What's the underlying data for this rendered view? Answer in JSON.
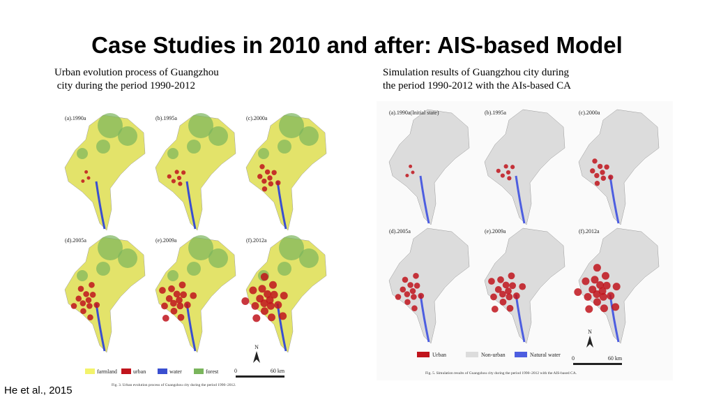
{
  "header": {
    "title": "Case Studies in 2010 and after: AIS-based Model"
  },
  "left": {
    "caption": [
      "Urban evolution process of Guangzhou",
      " city during the period 1990-2012"
    ],
    "panels": [
      "(a).1990a",
      "(b).1995a",
      "(c).2000a",
      "(d).2005a",
      "(e).2009a",
      "(f).2012a"
    ],
    "legend": [
      "farmland",
      "urban",
      "water",
      "forest"
    ],
    "north": "N",
    "scale": [
      "0",
      "60 km"
    ],
    "figure_caption": "Fig. 3. Urban evolution process of Guangzhou city during the period 1990–2012."
  },
  "right": {
    "caption": [
      "Simulation results of Guangzhou city during",
      "the period 1990-2012 with the AIs-based CA"
    ],
    "panels": [
      "(a).1990a(Initial state)",
      "(b).1995a",
      "(c).2000a",
      "(d).2005a",
      "(e).2009a",
      "(f).2012a"
    ],
    "legend": [
      "Urban",
      "Non-urban",
      "Natural water"
    ],
    "north": "N",
    "scale": [
      "0",
      "60 km"
    ],
    "figure_caption": "Fig. 5. Simulation results of Guangzhou city during the period 1990–2012 with the AIS-based CA."
  },
  "citation": "He et al., 2015"
}
